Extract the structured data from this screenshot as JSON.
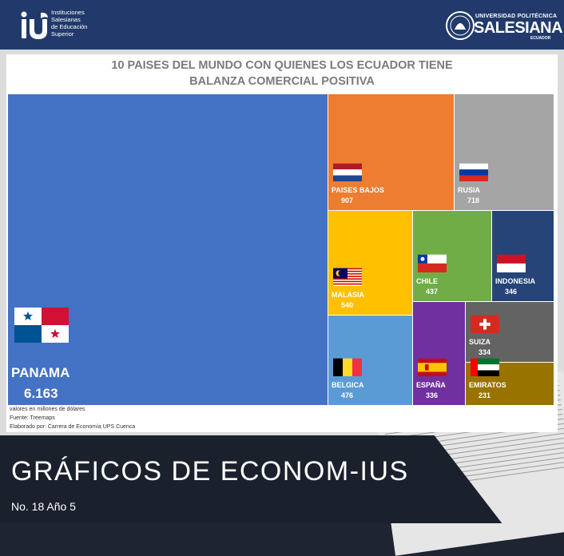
{
  "header": {
    "ius_lines": [
      "Instituciones",
      "Salesianas",
      "de Educación",
      "Superior"
    ],
    "ups_top": "UNIVERSIDAD POLITÉCNICA",
    "ups_name": "SALESIANA",
    "ups_country": "ECUADOR"
  },
  "chart_data": {
    "type": "treemap",
    "title_lines": [
      "10 PAISES DEL MUNDO CON QUIENES LOS ECUADOR TIENE",
      "BALANZA COMERCIAL POSITIVA"
    ],
    "items": [
      {
        "name": "PANAMA",
        "value": 6163,
        "label_value": "6.163",
        "color": "#4472c4"
      },
      {
        "name": "PAISES BAJOS",
        "value": 907,
        "label_value": "907",
        "color": "#ed7d31"
      },
      {
        "name": "RUSIA",
        "value": 718,
        "label_value": "718",
        "color": "#a5a5a5"
      },
      {
        "name": "MALASIA",
        "value": 540,
        "label_value": "540",
        "color": "#ffc000"
      },
      {
        "name": "BELGICA",
        "value": 476,
        "label_value": "476",
        "color": "#5b9bd5"
      },
      {
        "name": "CHILE",
        "value": 437,
        "label_value": "437",
        "color": "#70ad47"
      },
      {
        "name": "INDONESIA",
        "value": 346,
        "label_value": "346",
        "color": "#264478"
      },
      {
        "name": "ESPAÑA",
        "value": 336,
        "label_value": "336",
        "color": "#7030a0"
      },
      {
        "name": "SUIZA",
        "value": 334,
        "label_value": "334",
        "color": "#636363"
      },
      {
        "name": "EMIRATOS",
        "value": 231,
        "label_value": "231",
        "color": "#997300"
      }
    ],
    "notes": [
      "valores en millones de dólares",
      "Fuente: Treemaps",
      "Elaborado por: Carrera de Economía UPS Cuenca"
    ]
  },
  "footer": {
    "title": "GRÁFICOS DE ECONOM-IUS",
    "subtitle": "No. 18 Año 5"
  }
}
